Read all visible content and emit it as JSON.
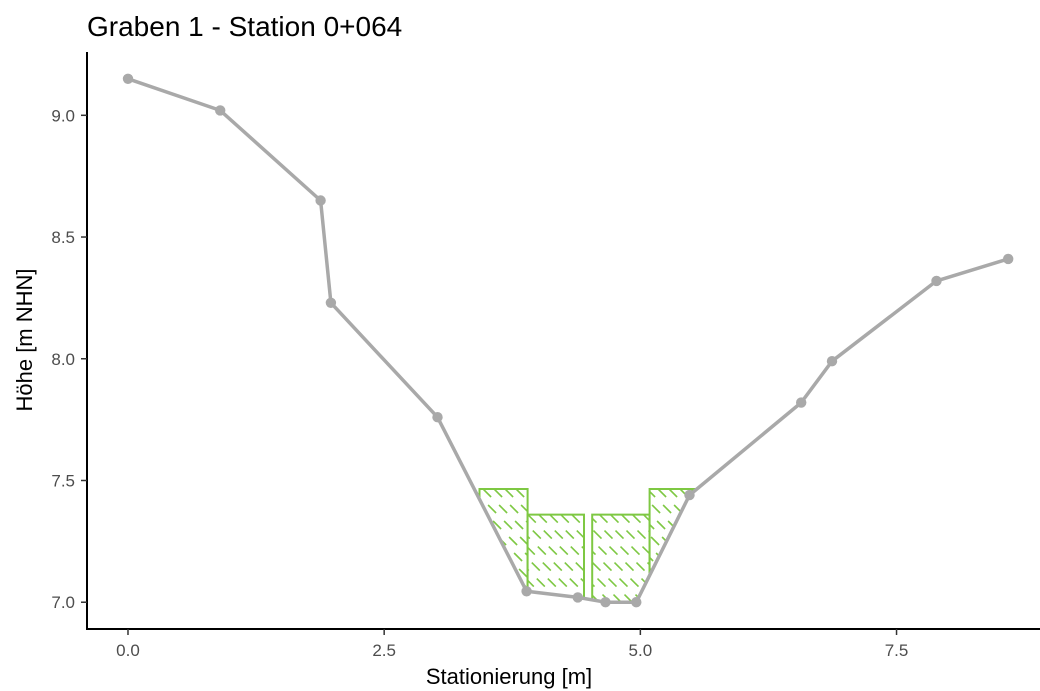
{
  "chart_data": {
    "type": "line",
    "title": "Graben 1 - Station 0+064",
    "xlabel": "Stationierung [m]",
    "ylabel": "Höhe [m NHN]",
    "xlim": [
      -0.4,
      8.9
    ],
    "ylim": [
      6.89,
      9.26
    ],
    "x_ticks": [
      0.0,
      2.5,
      5.0,
      7.5
    ],
    "x_tick_labels": [
      "0.0",
      "2.5",
      "5.0",
      "7.5"
    ],
    "y_ticks": [
      7.0,
      7.5,
      8.0,
      8.5,
      9.0
    ],
    "y_tick_labels": [
      "7.0",
      "7.5",
      "8.0",
      "8.5",
      "9.0"
    ],
    "grid": false,
    "legend": "none",
    "series": [
      {
        "x": [
          0.0,
          0.9,
          1.88,
          1.98,
          3.02,
          3.89,
          4.39,
          4.66,
          4.96,
          5.48,
          6.57,
          6.87,
          7.89,
          8.59
        ],
        "y": [
          9.15,
          9.02,
          8.65,
          8.23,
          7.76,
          7.045,
          7.02,
          7.0,
          7.0,
          7.44,
          7.82,
          7.99,
          8.32,
          8.41
        ]
      }
    ],
    "vegetation_boxes": [
      {
        "x0": 3.43,
        "x1": 3.9,
        "top": 7.465
      },
      {
        "x0": 3.9,
        "x1": 4.45,
        "top": 7.36
      },
      {
        "x0": 4.53,
        "x1": 5.09,
        "top": 7.36
      },
      {
        "x0": 5.09,
        "x1": 5.53,
        "top": 7.465
      }
    ],
    "colors": {
      "profile": "#a9a9a9",
      "vegetation": "#7ec843",
      "axis": "#000000",
      "tick_text": "#4d4d4d"
    }
  }
}
